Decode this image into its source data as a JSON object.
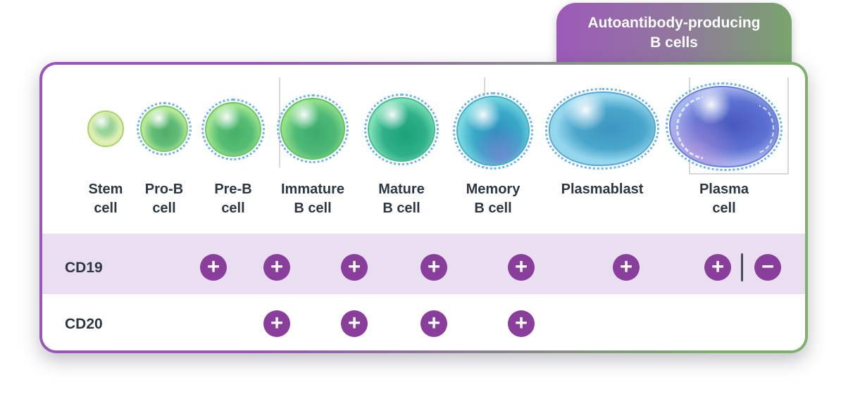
{
  "banner": {
    "label": "Autoantibody-producing B cells"
  },
  "stages": [
    {
      "name": "Stem cell",
      "label_line1": "Stem",
      "label_line2": "cell"
    },
    {
      "name": "Pro-B cell",
      "label_line1": "Pro-B",
      "label_line2": "cell"
    },
    {
      "name": "Pre-B cell",
      "label_line1": "Pre-B",
      "label_line2": "cell"
    },
    {
      "name": "Immature B cell",
      "label_line1": "Immature",
      "label_line2": "B cell"
    },
    {
      "name": "Mature B cell",
      "label_line1": "Mature",
      "label_line2": "B cell"
    },
    {
      "name": "Memory B cell",
      "label_line1": "Memory",
      "label_line2": "B cell"
    },
    {
      "name": "Plasmablast",
      "label_line1": "Plasmablast",
      "label_line2": ""
    },
    {
      "name": "Plasma cell",
      "label_line1": "Plasma",
      "label_line2": "cell"
    }
  ],
  "marker_rows": [
    {
      "label": "CD19",
      "markers": [
        {
          "stage": "Pro-B cell",
          "symbol": "+"
        },
        {
          "stage": "Pre-B cell",
          "symbol": "+"
        },
        {
          "stage": "Immature B cell",
          "symbol": "+"
        },
        {
          "stage": "Mature B cell",
          "symbol": "+"
        },
        {
          "stage": "Memory B cell",
          "symbol": "+"
        },
        {
          "stage": "Plasmablast",
          "symbol": "+"
        },
        {
          "stage": "Plasma cell",
          "symbol": "+"
        },
        {
          "stage": "Plasma cell",
          "symbol": "−"
        }
      ]
    },
    {
      "label": "CD20",
      "markers": [
        {
          "stage": "Pre-B cell",
          "symbol": "+"
        },
        {
          "stage": "Immature B cell",
          "symbol": "+"
        },
        {
          "stage": "Mature B cell",
          "symbol": "+"
        },
        {
          "stage": "Memory B cell",
          "symbol": "+"
        }
      ]
    }
  ],
  "colors": {
    "banner_gradient_start": "#9c5ab9",
    "banner_gradient_end": "#79a46d",
    "card_border_gradient_start": "#9a55b8",
    "card_border_gradient_end": "#7fb06f",
    "cd19_row_background": "#eadef1",
    "marker_circle": "#8a3e9c",
    "label_text": "#2e3642"
  }
}
